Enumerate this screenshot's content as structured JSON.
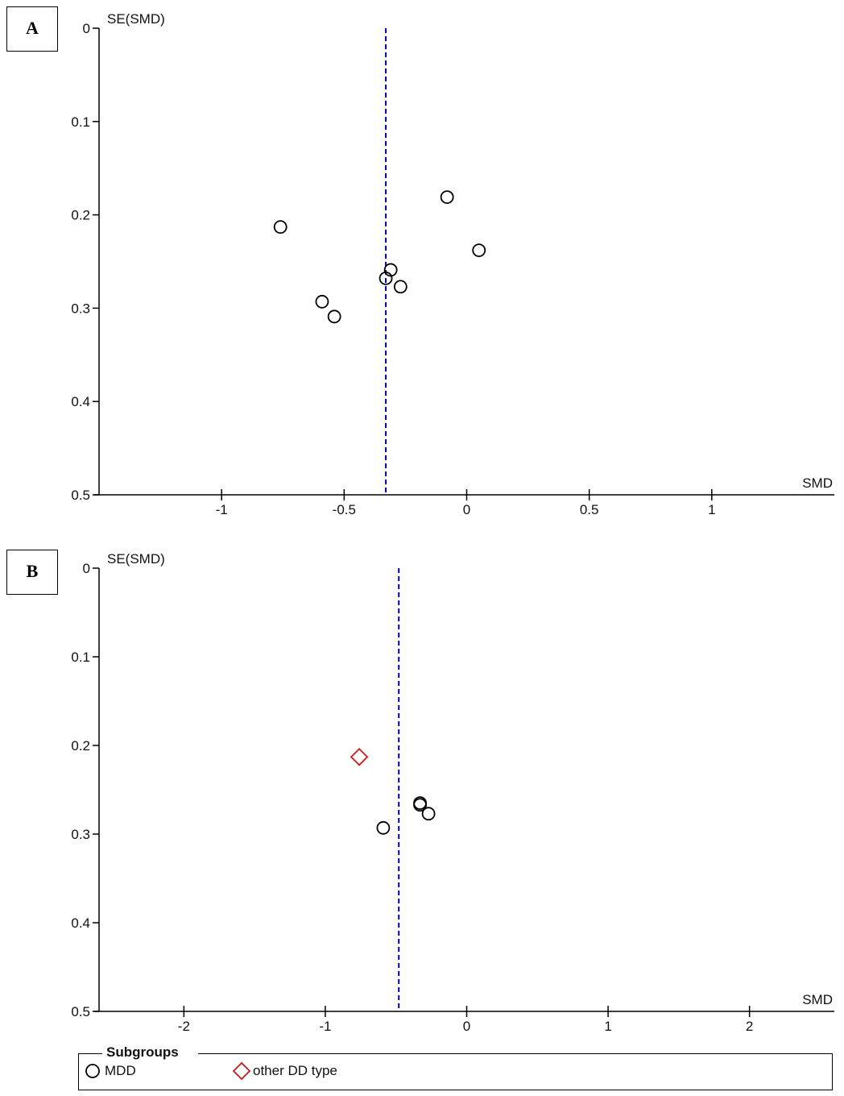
{
  "panels": [
    {
      "label": "A"
    },
    {
      "label": "B"
    }
  ],
  "legend": {
    "title": "Subgroups",
    "items": [
      {
        "label": "MDD",
        "marker": "circle",
        "color": "#000000"
      },
      {
        "label": "other DD type",
        "marker": "diamond",
        "color": "#cc1a1a"
      }
    ]
  },
  "chart_data": [
    {
      "type": "scatter",
      "panel": "A",
      "title": "",
      "xlabel": "SMD",
      "ylabel": "SE(SMD)",
      "xlim": [
        -1.5,
        1.5
      ],
      "ylim": [
        0,
        0.5
      ],
      "y_reversed": true,
      "xticks": [
        -1,
        -0.5,
        0,
        0.5,
        1
      ],
      "xtick_labels": [
        "-1",
        "-0.5",
        "0",
        "0.5",
        "1"
      ],
      "yticks": [
        0,
        0.1,
        0.2,
        0.3,
        0.4,
        0.5
      ],
      "ytick_labels": [
        "0",
        "0.1",
        "0.2",
        "0.3",
        "0.4",
        "0.5"
      ],
      "pooled_estimate": -0.33,
      "reference_line_color": "#0000b0",
      "series": [
        {
          "marker": "circle",
          "color": "#000000",
          "points": [
            {
              "x": -0.76,
              "y": 0.213
            },
            {
              "x": -0.59,
              "y": 0.293
            },
            {
              "x": -0.54,
              "y": 0.309
            },
            {
              "x": -0.31,
              "y": 0.259
            },
            {
              "x": -0.33,
              "y": 0.268
            },
            {
              "x": -0.27,
              "y": 0.277
            },
            {
              "x": -0.08,
              "y": 0.181
            },
            {
              "x": 0.05,
              "y": 0.238
            }
          ]
        }
      ]
    },
    {
      "type": "scatter",
      "panel": "B",
      "title": "",
      "xlabel": "SMD",
      "ylabel": "SE(SMD)",
      "xlim": [
        -2.6,
        2.6
      ],
      "ylim": [
        0,
        0.5
      ],
      "y_reversed": true,
      "xticks": [
        -2,
        -1,
        0,
        1,
        2
      ],
      "xtick_labels": [
        "-2",
        "-1",
        "0",
        "1",
        "2"
      ],
      "yticks": [
        0,
        0.1,
        0.2,
        0.3,
        0.4,
        0.5
      ],
      "ytick_labels": [
        "0",
        "0.1",
        "0.2",
        "0.3",
        "0.4",
        "0.5"
      ],
      "pooled_estimate": -0.48,
      "reference_line_color": "#0000b0",
      "series": [
        {
          "name": "MDD",
          "marker": "circle",
          "color": "#000000",
          "points": [
            {
              "x": -0.59,
              "y": 0.293
            },
            {
              "x": -0.33,
              "y": 0.265
            },
            {
              "x": -0.33,
              "y": 0.267
            },
            {
              "x": -0.27,
              "y": 0.277
            }
          ]
        },
        {
          "name": "other DD type",
          "marker": "diamond",
          "color": "#cc1a1a",
          "points": [
            {
              "x": -0.76,
              "y": 0.213
            }
          ]
        }
      ]
    }
  ]
}
